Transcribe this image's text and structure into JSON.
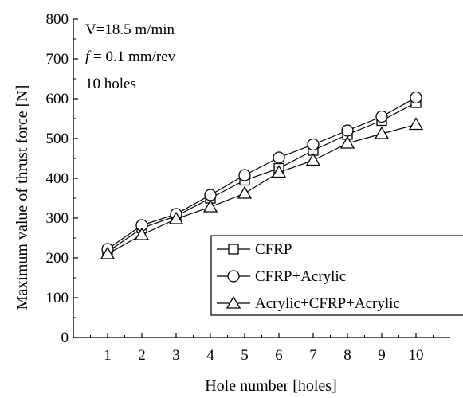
{
  "chart_data": {
    "type": "line",
    "title": "",
    "xlabel": "Hole number [holes]",
    "ylabel": "Maximum value of thrust force [N]",
    "x": [
      1,
      2,
      3,
      4,
      5,
      6,
      7,
      8,
      9,
      10
    ],
    "xlim": [
      0,
      11
    ],
    "ylim": [
      0,
      800
    ],
    "xticks": [
      1,
      2,
      3,
      4,
      5,
      6,
      7,
      8,
      9,
      10
    ],
    "yticks": [
      0,
      100,
      200,
      300,
      400,
      500,
      600,
      700,
      800
    ],
    "grid": false,
    "legend_position": "bottom-right",
    "annotations": {
      "speed_prefix": "V=18.5 m/min",
      "feed_symbol": "f",
      "feed_value": " = 0.1 mm/rev",
      "holes": "10 holes"
    },
    "series": [
      {
        "name": "CFRP",
        "marker": "square",
        "values": [
          215,
          275,
          305,
          350,
          395,
          425,
          470,
          510,
          545,
          590
        ]
      },
      {
        "name": "CFRP+Acrylic",
        "marker": "circle",
        "values": [
          222,
          282,
          310,
          358,
          408,
          452,
          485,
          520,
          555,
          603
        ]
      },
      {
        "name": "Acrylic+CFRP+Acrylic",
        "marker": "triangle",
        "values": [
          210,
          258,
          298,
          328,
          362,
          415,
          445,
          488,
          512,
          535
        ]
      }
    ]
  }
}
